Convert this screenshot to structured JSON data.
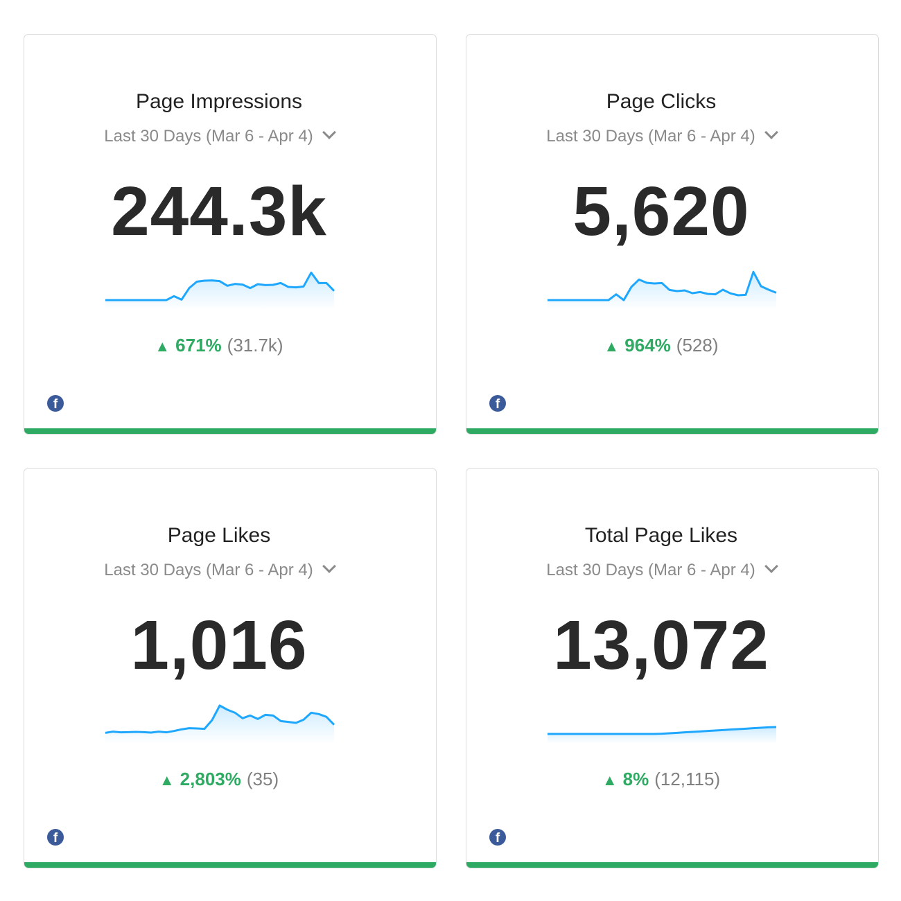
{
  "colors": {
    "positive": "#2eaa63",
    "line": "#1ea7fd",
    "bar": "#2eaa63",
    "facebook": "#3b5a9a"
  },
  "cards": [
    {
      "title": "Page Impressions",
      "range": "Last 30 Days (Mar 6 - Apr 4)",
      "value": "244.3k",
      "arrow": "▲",
      "change": "671%",
      "previous": "(31.7k)",
      "source_icon": "facebook-icon",
      "sparkline": [
        0,
        0,
        0,
        0,
        0,
        0,
        0,
        0,
        0,
        17,
        2,
        52,
        80,
        84,
        85,
        82,
        62,
        70,
        67,
        52,
        69,
        65,
        66,
        74,
        57,
        55,
        59,
        119,
        74,
        74,
        40
      ]
    },
    {
      "title": "Page Clicks",
      "range": "Last 30 Days (Mar 6 - Apr 4)",
      "value": "5,620",
      "arrow": "▲",
      "change": "964%",
      "previous": "(528)",
      "source_icon": "facebook-icon",
      "sparkline": [
        0,
        0,
        0,
        0,
        0,
        0,
        0,
        0,
        0,
        25,
        0,
        57,
        89,
        75,
        72,
        74,
        44,
        39,
        42,
        30,
        35,
        27,
        25,
        45,
        29,
        21,
        23,
        122,
        60,
        45,
        32
      ]
    },
    {
      "title": "Page Likes",
      "range": "Last 30 Days (Mar 6 - Apr 4)",
      "value": "1,016",
      "arrow": "▲",
      "change": "2,803%",
      "previous": "(35)",
      "source_icon": "facebook-icon",
      "sparkline": [
        5,
        10,
        7,
        8,
        9,
        8,
        6,
        10,
        7,
        13,
        20,
        25,
        24,
        22,
        60,
        123,
        105,
        92,
        68,
        80,
        65,
        83,
        80,
        56,
        52,
        48,
        62,
        92,
        86,
        74,
        40
      ]
    },
    {
      "title": "Total Page Likes",
      "range": "Last 30 Days (Mar 6 - Apr 4)",
      "value": "13,072",
      "arrow": "▲",
      "change": "8%",
      "previous": "(12,115)",
      "source_icon": "facebook-icon",
      "sparkline": [
        0,
        0,
        0,
        0,
        0,
        0,
        0,
        0,
        0,
        0,
        0,
        0,
        0,
        0,
        0,
        1,
        3,
        5,
        7,
        9,
        11,
        13,
        15,
        17,
        19,
        21,
        23,
        25,
        27,
        29,
        30
      ]
    }
  ]
}
